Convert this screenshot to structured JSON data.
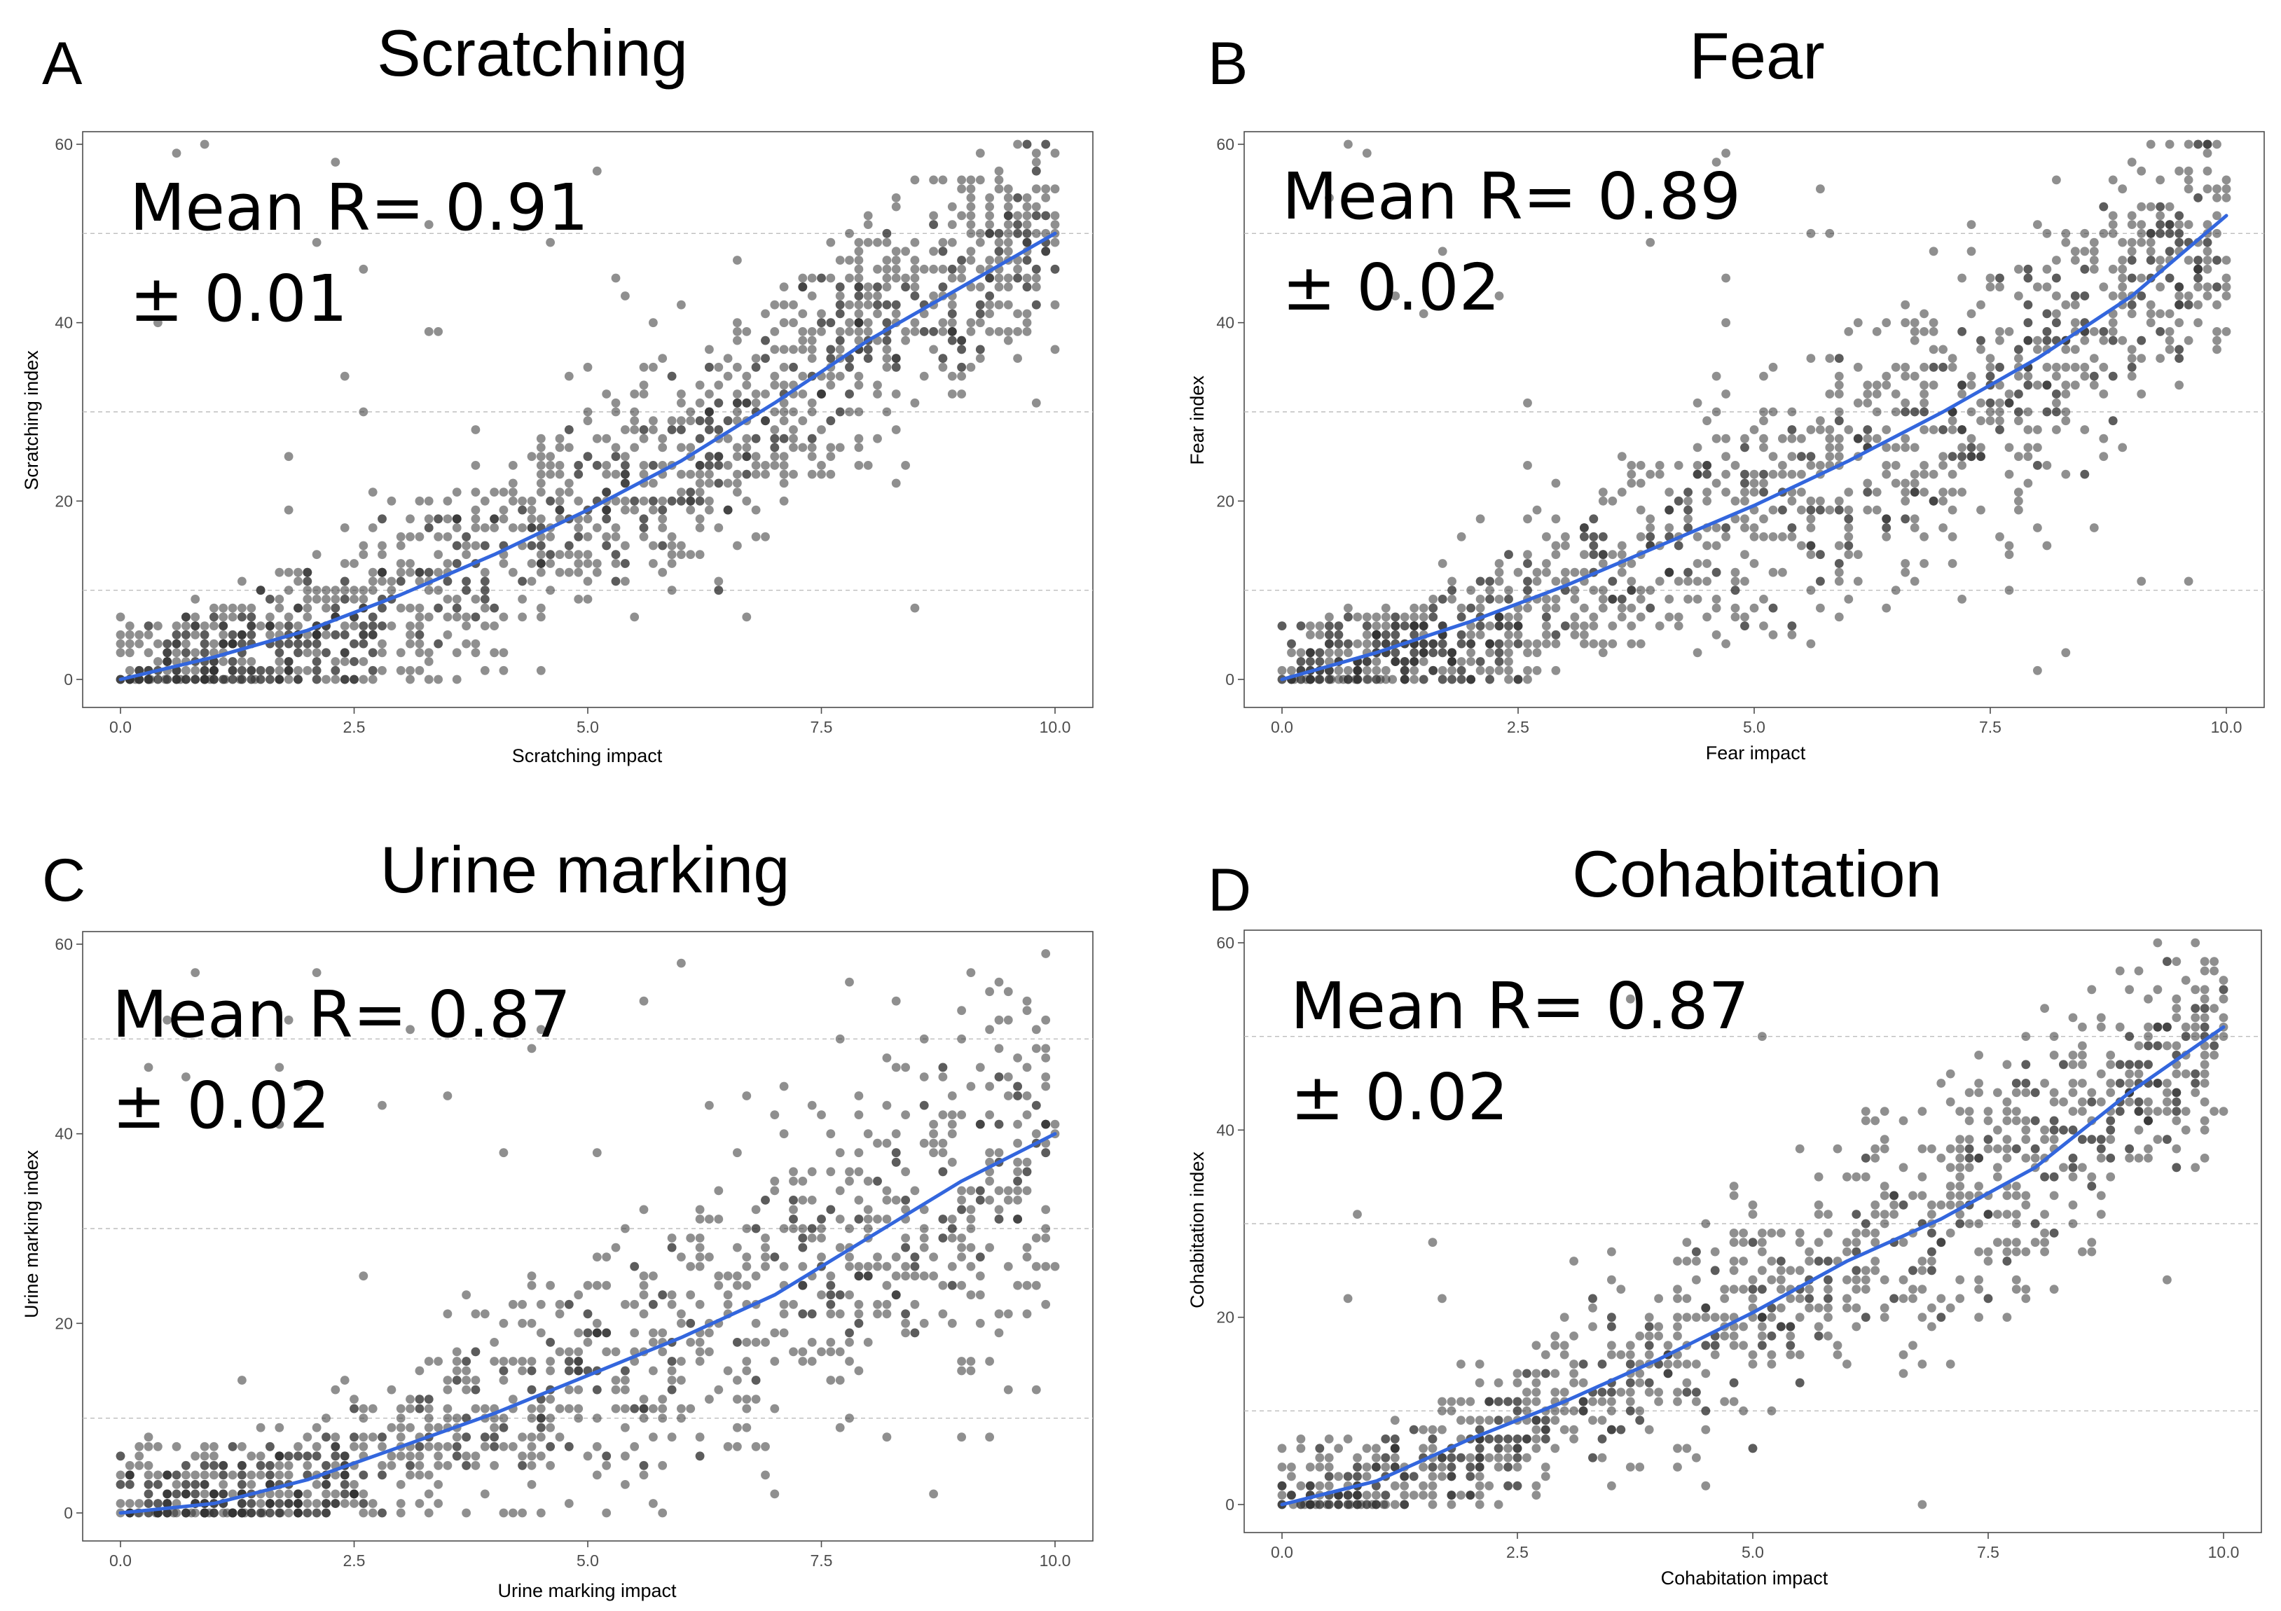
{
  "chart_data": [
    {
      "panel": "A",
      "type": "scatter",
      "title": "Scratching",
      "xlabel": "Scratching impact",
      "ylabel": "Scratching index",
      "xlim": [
        0,
        10
      ],
      "ylim": [
        0,
        60
      ],
      "xticks": [
        "0.0",
        "2.5",
        "5.0",
        "7.5",
        "10.0"
      ],
      "yticks": [
        "0",
        "20",
        "40",
        "60"
      ],
      "grid_y": [
        10,
        30,
        50
      ],
      "stat_line1": "Mean R= 0.91",
      "stat_line2": "± 0.01",
      "point_color": "#333333",
      "trend_color": "#3366dd",
      "trend": {
        "x": [
          0,
          1,
          2,
          3,
          4,
          5,
          6,
          7,
          8,
          9,
          10
        ],
        "y": [
          0,
          2.5,
          5.5,
          9.5,
          14,
          19,
          24.5,
          31,
          38,
          44,
          50
        ]
      },
      "scatter": {
        "n": 1400,
        "base": [
          0,
          2.5,
          5.5,
          9.5,
          14,
          19,
          24.5,
          31,
          38,
          44,
          50
        ],
        "spread": [
          2,
          5,
          7,
          9,
          10,
          11,
          11,
          11,
          11,
          11,
          10
        ],
        "lowfrac": 0.1,
        "outlierfrac": 0.02,
        "zeroline": 1.6,
        "seed": 11
      }
    },
    {
      "panel": "B",
      "type": "scatter",
      "title": "Fear",
      "xlabel": "Fear impact",
      "ylabel": "Fear index",
      "xlim": [
        0,
        10
      ],
      "ylim": [
        0,
        60
      ],
      "xticks": [
        "0.0",
        "2.5",
        "5.0",
        "7.5",
        "10.0"
      ],
      "yticks": [
        "0",
        "20",
        "40",
        "60"
      ],
      "grid_y": [
        10,
        30,
        50
      ],
      "stat_line1": "Mean R= 0.89",
      "stat_line2": "± 0.02",
      "point_color": "#333333",
      "trend_color": "#3366dd",
      "trend": {
        "x": [
          0,
          1,
          2,
          3,
          4,
          5,
          6,
          7,
          8,
          9,
          10
        ],
        "y": [
          0,
          3,
          6.5,
          10.5,
          15,
          19.5,
          24.5,
          30,
          36,
          43,
          52
        ]
      },
      "scatter": {
        "n": 1300,
        "base": [
          0,
          3,
          6.5,
          10.5,
          15,
          19.5,
          24.5,
          30,
          36,
          43,
          52
        ],
        "spread": [
          2.5,
          5,
          7,
          9,
          11,
          12,
          13,
          13,
          13,
          12,
          10
        ],
        "lowfrac": 0.12,
        "outlierfrac": 0.03,
        "zeroline": 1.3,
        "seed": 23
      }
    },
    {
      "panel": "C",
      "type": "scatter",
      "title": "Urine marking",
      "xlabel": "Urine marking impact",
      "ylabel": "Urine marking index",
      "xlim": [
        0,
        10
      ],
      "ylim": [
        0,
        60
      ],
      "xticks": [
        "0.0",
        "2.5",
        "5.0",
        "7.5",
        "10.0"
      ],
      "yticks": [
        "0",
        "20",
        "40",
        "60"
      ],
      "grid_y": [
        10,
        30,
        50
      ],
      "stat_line1": "Mean R= 0.87",
      "stat_line2": "± 0.02",
      "point_color": "#333333",
      "trend_color": "#3366dd",
      "trend": {
        "x": [
          0,
          1,
          2,
          3,
          4,
          5,
          6,
          7,
          8,
          9,
          10
        ],
        "y": [
          0,
          1,
          3.5,
          7,
          10.5,
          14.5,
          18.5,
          23,
          29,
          35,
          40
        ]
      },
      "scatter": {
        "n": 1150,
        "base": [
          0,
          1,
          3.5,
          7,
          10.5,
          14.5,
          18.5,
          23,
          29,
          35,
          40
        ],
        "spread": [
          1.5,
          4,
          6,
          8,
          10,
          11,
          12,
          14,
          15,
          16,
          17
        ],
        "lowfrac": 0.14,
        "outlierfrac": 0.04,
        "zeroline": 1.9,
        "seed": 37
      }
    },
    {
      "panel": "D",
      "type": "scatter",
      "title": "Cohabitation",
      "xlabel": "Cohabitation impact",
      "ylabel": "Cohabitation index",
      "xlim": [
        0,
        10
      ],
      "ylim": [
        0,
        60
      ],
      "xticks": [
        "0.0",
        "2.5",
        "5.0",
        "7.5",
        "10.0"
      ],
      "yticks": [
        "0",
        "20",
        "40",
        "60"
      ],
      "grid_y": [
        10,
        30,
        50
      ],
      "stat_line1": "Mean R= 0.87",
      "stat_line2": "± 0.02",
      "point_color": "#333333",
      "trend_color": "#3366dd",
      "trend": {
        "x": [
          0,
          1,
          2,
          3,
          4,
          5,
          6,
          7,
          8,
          9,
          10
        ],
        "y": [
          0,
          2.5,
          7,
          11,
          15.5,
          20.5,
          26,
          30.5,
          36,
          44,
          51
        ]
      },
      "scatter": {
        "n": 1100,
        "base": [
          0,
          2.5,
          7,
          11,
          15.5,
          20.5,
          26,
          30.5,
          36,
          44,
          51
        ],
        "spread": [
          2,
          4,
          6,
          8,
          9,
          10,
          11,
          11,
          11,
          10,
          9
        ],
        "lowfrac": 0.08,
        "outlierfrac": 0.03,
        "zeroline": 1.2,
        "seed": 51
      }
    }
  ]
}
